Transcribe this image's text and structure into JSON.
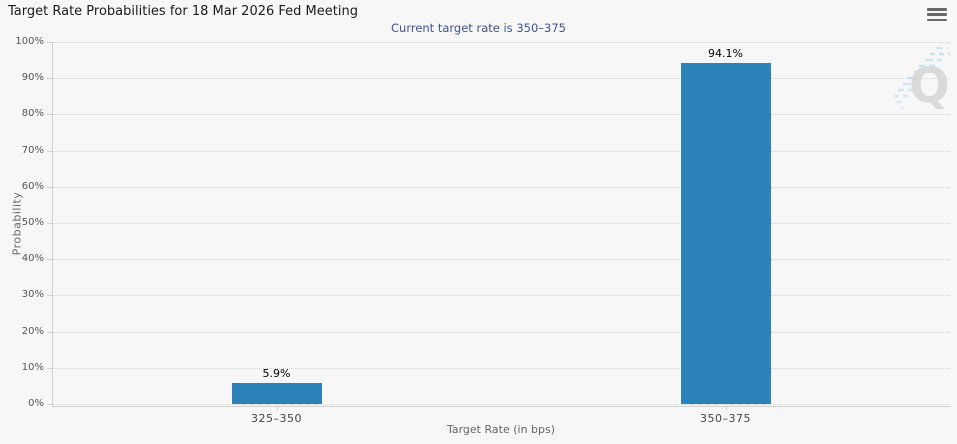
{
  "header": {
    "menu_tooltip": "chart context menu"
  },
  "chart_data": {
    "type": "bar",
    "title": "Target Rate Probabilities for 18 Mar 2026 Fed Meeting",
    "subtitle": "Current target rate is 350–375",
    "categories": [
      "325–350",
      "350–375"
    ],
    "values": [
      5.9,
      94.1
    ],
    "value_labels": [
      "5.9%",
      "94.1%"
    ],
    "xlabel": "Target Rate (in bps)",
    "ylabel": "Probability",
    "ylim": [
      0,
      100
    ],
    "ytick_step": 10,
    "ytick_labels": [
      "0%",
      "10%",
      "20%",
      "30%",
      "40%",
      "50%",
      "60%",
      "70%",
      "80%",
      "90%",
      "100%"
    ],
    "grid": "dotted horizontal",
    "legend": "none",
    "bar_color": "#2e82ba",
    "background_color": "#f7f7f7",
    "subtitle_color": "#3d5495",
    "watermark": "Q"
  }
}
